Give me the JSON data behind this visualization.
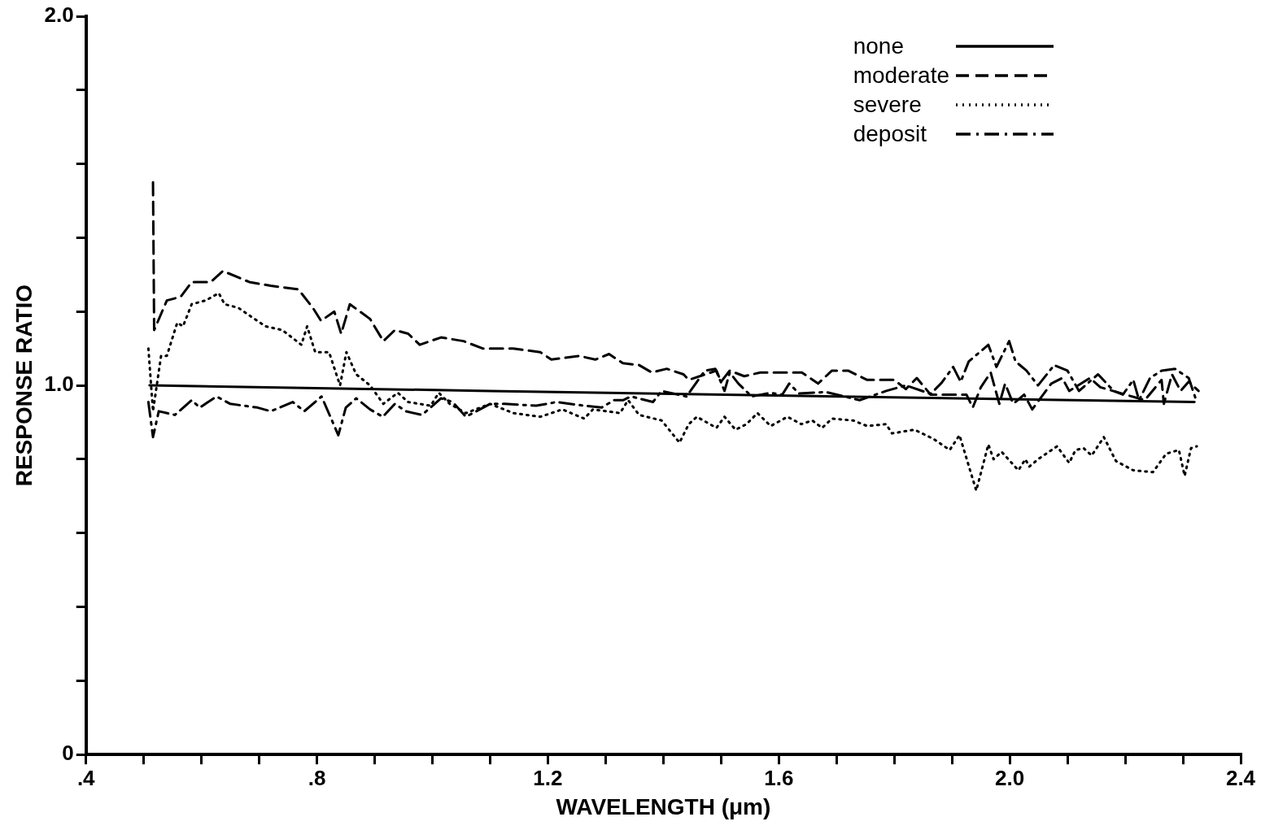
{
  "chart_data": {
    "type": "line",
    "xlabel": "WAVELENGTH (μm)",
    "ylabel": "RESPONSE RATIO",
    "xlim": [
      0.4,
      2.4
    ],
    "ylim": [
      0,
      2.0
    ],
    "xticks": [
      {
        "value": 0.4,
        "label": ".4"
      },
      {
        "value": 0.5,
        "label": null
      },
      {
        "value": 0.6,
        "label": null
      },
      {
        "value": 0.7,
        "label": null
      },
      {
        "value": 0.8,
        "label": ".8"
      },
      {
        "value": 0.9,
        "label": null
      },
      {
        "value": 1.0,
        "label": null
      },
      {
        "value": 1.1,
        "label": null
      },
      {
        "value": 1.2,
        "label": "1.2"
      },
      {
        "value": 1.3,
        "label": null
      },
      {
        "value": 1.4,
        "label": null
      },
      {
        "value": 1.5,
        "label": null
      },
      {
        "value": 1.6,
        "label": "1.6"
      },
      {
        "value": 1.7,
        "label": null
      },
      {
        "value": 1.8,
        "label": null
      },
      {
        "value": 1.9,
        "label": null
      },
      {
        "value": 2.0,
        "label": "2.0"
      },
      {
        "value": 2.1,
        "label": null
      },
      {
        "value": 2.2,
        "label": null
      },
      {
        "value": 2.3,
        "label": null
      },
      {
        "value": 2.4,
        "label": "2.4"
      }
    ],
    "yticks": [
      0,
      {
        "value": 0.2,
        "label": null
      },
      {
        "value": 0.4,
        "label": null
      },
      {
        "value": 0.6,
        "label": null
      },
      {
        "value": 0.8,
        "label": null
      },
      {
        "value": 1.0,
        "label": "1.0"
      },
      {
        "value": 1.2,
        "label": null
      },
      {
        "value": 1.4,
        "label": null
      },
      {
        "value": 1.6,
        "label": null
      },
      {
        "value": 1.8,
        "label": null
      },
      {
        "value": 2.0,
        "label": "2.0"
      }
    ],
    "grid": false,
    "legend": "top right",
    "marker": "none",
    "series": [
      {
        "name": "none",
        "color": "#000000",
        "line_style": "solid",
        "x": [
          0.51,
          1.1,
          2.32
        ],
        "values": [
          1.0,
          0.985,
          0.955
        ]
      },
      {
        "name": "moderate",
        "color": "#000000",
        "line_style": "dashed",
        "x": [
          0.516,
          0.518,
          0.54,
          0.564,
          0.583,
          0.616,
          0.637,
          0.683,
          0.72,
          0.768,
          0.793,
          0.807,
          0.83,
          0.842,
          0.857,
          0.892,
          0.915,
          0.935,
          0.958,
          0.978,
          1.015,
          1.054,
          1.087,
          1.14,
          1.187,
          1.206,
          1.254,
          1.282,
          1.306,
          1.33,
          1.358,
          1.38,
          1.406,
          1.435,
          1.444,
          1.492,
          1.5,
          1.515,
          1.54,
          1.568,
          1.61,
          1.64,
          1.668,
          1.692,
          1.72,
          1.753,
          1.8,
          1.82,
          1.839,
          1.863,
          1.925,
          1.936,
          1.95,
          1.967,
          1.982,
          1.992,
          2.006,
          2.025,
          2.039,
          2.072,
          2.091,
          2.103,
          2.139,
          2.157,
          2.234,
          2.263,
          2.267,
          2.281,
          2.296,
          2.31,
          2.327
        ],
        "values": [
          1.55,
          1.15,
          1.23,
          1.24,
          1.28,
          1.28,
          1.31,
          1.28,
          1.27,
          1.26,
          1.21,
          1.175,
          1.2,
          1.14,
          1.22,
          1.18,
          1.12,
          1.15,
          1.14,
          1.11,
          1.13,
          1.12,
          1.1,
          1.1,
          1.09,
          1.07,
          1.08,
          1.07,
          1.085,
          1.06,
          1.055,
          1.035,
          1.045,
          1.03,
          1.015,
          1.04,
          1.01,
          1.04,
          1.025,
          1.035,
          1.035,
          1.035,
          1.005,
          1.04,
          1.04,
          1.015,
          1.015,
          0.99,
          1.02,
          0.975,
          0.975,
          0.94,
          0.995,
          1.035,
          0.95,
          1.005,
          0.95,
          0.975,
          0.935,
          1.005,
          1.02,
          0.985,
          1.02,
          0.995,
          0.96,
          1.015,
          0.95,
          1.03,
          0.985,
          1.01,
          0.985
        ]
      },
      {
        "name": "severe",
        "color": "#000000",
        "line_style": "dotted",
        "x": [
          0.508,
          0.516,
          0.53,
          0.54,
          0.558,
          0.568,
          0.583,
          0.607,
          0.63,
          0.64,
          0.664,
          0.692,
          0.711,
          0.74,
          0.773,
          0.783,
          0.797,
          0.821,
          0.84,
          0.851,
          0.868,
          0.892,
          0.915,
          0.94,
          0.958,
          0.997,
          1.011,
          1.03,
          1.058,
          1.1,
          1.14,
          1.187,
          1.225,
          1.263,
          1.278,
          1.325,
          1.339,
          1.358,
          1.397,
          1.428,
          1.444,
          1.458,
          1.492,
          1.506,
          1.525,
          1.544,
          1.563,
          1.586,
          1.615,
          1.639,
          1.658,
          1.675,
          1.692,
          1.729,
          1.753,
          1.786,
          1.796,
          1.835,
          1.868,
          1.896,
          1.913,
          1.942,
          1.963,
          1.972,
          1.986,
          2.015,
          2.027,
          2.034,
          2.049,
          2.082,
          2.103,
          2.114,
          2.128,
          2.142,
          2.163,
          2.184,
          2.214,
          2.248,
          2.271,
          2.293,
          2.303,
          2.314,
          2.324
        ],
        "values": [
          1.1,
          0.93,
          1.08,
          1.08,
          1.17,
          1.16,
          1.22,
          1.23,
          1.25,
          1.22,
          1.21,
          1.18,
          1.16,
          1.15,
          1.11,
          1.16,
          1.09,
          1.09,
          1.0,
          1.09,
          1.03,
          1.0,
          0.95,
          0.98,
          0.955,
          0.945,
          0.98,
          0.95,
          0.925,
          0.95,
          0.925,
          0.915,
          0.935,
          0.91,
          0.935,
          0.925,
          0.96,
          0.92,
          0.905,
          0.845,
          0.895,
          0.915,
          0.885,
          0.915,
          0.88,
          0.895,
          0.925,
          0.89,
          0.915,
          0.895,
          0.905,
          0.885,
          0.91,
          0.905,
          0.89,
          0.895,
          0.87,
          0.88,
          0.855,
          0.825,
          0.865,
          0.715,
          0.84,
          0.8,
          0.82,
          0.77,
          0.8,
          0.78,
          0.8,
          0.835,
          0.79,
          0.825,
          0.83,
          0.81,
          0.86,
          0.795,
          0.77,
          0.765,
          0.815,
          0.825,
          0.755,
          0.83,
          0.835
        ]
      },
      {
        "name": "deposit",
        "color": "#000000",
        "line_style": "dashdot",
        "x": [
          0.508,
          0.516,
          0.526,
          0.554,
          0.583,
          0.597,
          0.626,
          0.65,
          0.697,
          0.72,
          0.758,
          0.778,
          0.808,
          0.837,
          0.85,
          0.868,
          0.892,
          0.914,
          0.935,
          0.954,
          0.982,
          1.015,
          1.035,
          1.058,
          1.1,
          1.125,
          1.18,
          1.215,
          1.263,
          1.293,
          1.315,
          1.33,
          1.344,
          1.382,
          1.397,
          1.44,
          1.472,
          1.49,
          1.506,
          1.515,
          1.53,
          1.553,
          1.586,
          1.606,
          1.618,
          1.635,
          1.682,
          1.74,
          1.786,
          1.82,
          1.863,
          1.882,
          1.902,
          1.915,
          1.929,
          1.963,
          1.977,
          1.999,
          2.01,
          2.029,
          2.049,
          2.077,
          2.1,
          2.12,
          2.153,
          2.18,
          2.196,
          2.214,
          2.224,
          2.243,
          2.263,
          2.286,
          2.31,
          2.324
        ],
        "values": [
          0.955,
          0.86,
          0.93,
          0.92,
          0.96,
          0.94,
          0.97,
          0.95,
          0.94,
          0.93,
          0.955,
          0.93,
          0.97,
          0.865,
          0.94,
          0.965,
          0.935,
          0.915,
          0.95,
          0.93,
          0.92,
          0.965,
          0.955,
          0.915,
          0.95,
          0.95,
          0.945,
          0.955,
          0.945,
          0.94,
          0.96,
          0.96,
          0.97,
          0.955,
          0.985,
          0.97,
          1.04,
          1.045,
          0.985,
          1.035,
          1.005,
          0.97,
          0.98,
          0.975,
          1.005,
          0.978,
          0.982,
          0.96,
          0.985,
          1.0,
          0.977,
          1.007,
          1.05,
          1.01,
          1.065,
          1.11,
          1.05,
          1.12,
          1.065,
          1.04,
          1.0,
          1.055,
          1.04,
          0.985,
          1.03,
          0.985,
          0.975,
          1.015,
          0.96,
          1.02,
          1.04,
          1.045,
          1.02,
          0.955
        ]
      }
    ]
  }
}
